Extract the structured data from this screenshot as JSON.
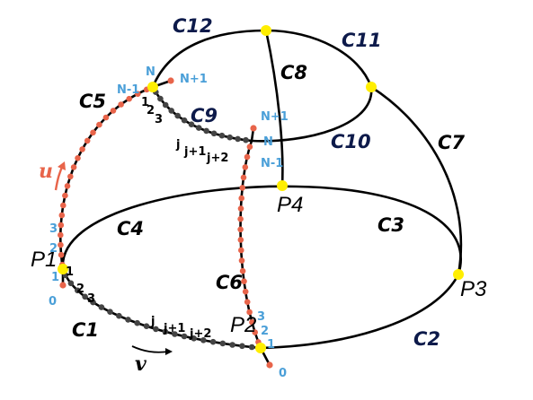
{
  "colors": {
    "curve": "#000000",
    "vertex": "#ffee00",
    "dot_u": "#e8644a",
    "dot_v": "#444444",
    "index_blue": "#4a9fd8",
    "index_black": "#000000",
    "label_dark": "#0d1a4a",
    "label_black": "#000000",
    "u_arrow": "#e8644a"
  },
  "curve_labels": {
    "c1": "C1",
    "c2": "C2",
    "c3": "C3",
    "c4": "C4",
    "c5": "C5",
    "c6": "C6",
    "c7": "C7",
    "c8": "C8",
    "c9": "C9",
    "c10": "C10",
    "c11": "C11",
    "c12": "C12"
  },
  "points": {
    "p1": "P1",
    "p2": "P2",
    "p3": "P3",
    "p4": "P4"
  },
  "directions": {
    "u": "u",
    "v": "v"
  },
  "c5_indices": {
    "i0": "0",
    "i1": "1",
    "i2": "2",
    "i3": "3",
    "n_minus_1": "N-1",
    "n": "N",
    "n_plus_1": "N+1"
  },
  "c1_indices": {
    "i1": "1",
    "i2": "2",
    "i3": "3",
    "j": "j",
    "j_plus_1": "j+1",
    "j_plus_2": "j+2"
  },
  "c6_indices": {
    "i0": "0",
    "i1": "1",
    "i2": "2",
    "i3": "3",
    "n_minus_1": "N-1",
    "n": "N",
    "n_plus_1": "N+1"
  },
  "c9_indices": {
    "i1": "1",
    "i2": "2",
    "i3": "3",
    "j": "j",
    "j_plus_1": "j+1",
    "j_plus_2": "j+2"
  }
}
